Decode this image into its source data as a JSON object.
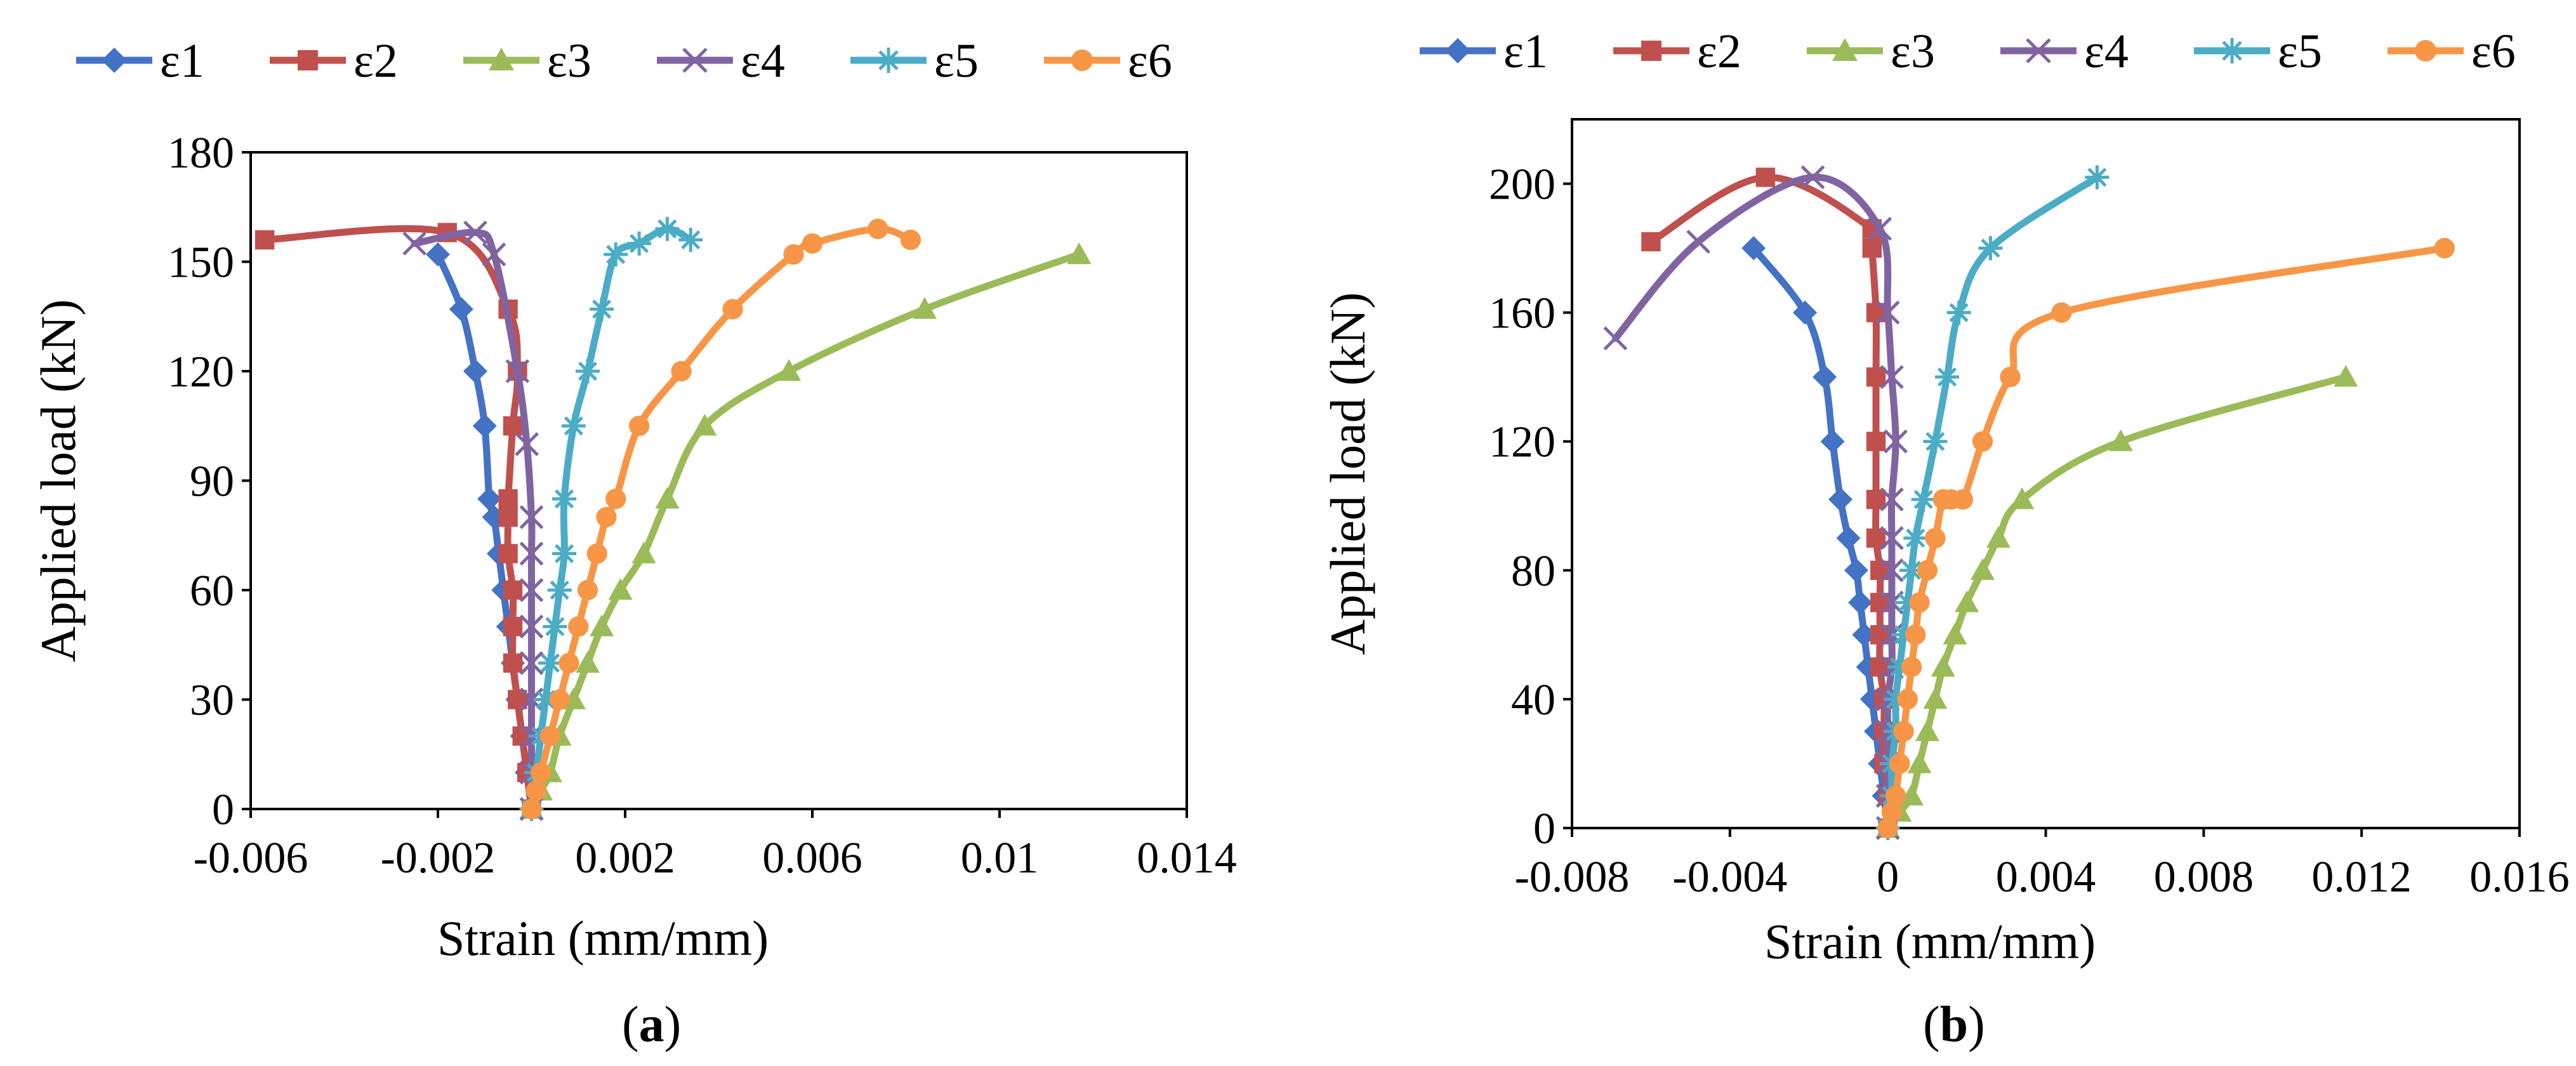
{
  "chart_data": [
    {
      "type": "line",
      "panel_label": "a",
      "xlabel": "Strain (mm/mm)",
      "ylabel": "Applied load (kN)",
      "xlim": [
        -0.006,
        0.014
      ],
      "ylim": [
        0,
        180
      ],
      "xticks": [
        -0.006,
        -0.002,
        0.002,
        0.006,
        0.01,
        0.014
      ],
      "xtick_labels": [
        "-0.006",
        "-0.002",
        "0.002",
        "0.006",
        "0.01",
        "0.014"
      ],
      "yticks": [
        0,
        30,
        60,
        90,
        120,
        150,
        180
      ],
      "ytick_labels": [
        "0",
        "30",
        "60",
        "90",
        "120",
        "150",
        "180"
      ],
      "legend_position": "top",
      "series": [
        {
          "name": "ε1",
          "color": "#4472C4",
          "marker": "diamond",
          "x": [
            0,
            -0.0001,
            -0.0002,
            -0.0003,
            -0.0004,
            -0.0005,
            -0.0006,
            -0.0007,
            -0.0008,
            -0.0009,
            -0.001,
            -0.0012,
            -0.0015,
            -0.002
          ],
          "y": [
            0,
            10,
            20,
            30,
            40,
            50,
            60,
            70,
            80,
            85,
            105,
            120,
            137,
            152
          ]
        },
        {
          "name": "ε2",
          "color": "#C0504D",
          "marker": "square",
          "x": [
            0,
            -0.0001,
            -0.0002,
            -0.0003,
            -0.0004,
            -0.0004,
            -0.0004,
            -0.0005,
            -0.0005,
            -0.0005,
            -0.0004,
            -0.0003,
            -0.0005,
            -0.0018,
            -0.0057
          ],
          "y": [
            0,
            10,
            20,
            30,
            40,
            50,
            60,
            70,
            80,
            85,
            105,
            120,
            137,
            158,
            156
          ]
        },
        {
          "name": "ε3",
          "color": "#9BBB59",
          "marker": "triangle",
          "x": [
            0,
            0.0002,
            0.0004,
            0.0006,
            0.0009,
            0.0012,
            0.0015,
            0.0019,
            0.0024,
            0.0029,
            0.0037,
            0.0055,
            0.0084,
            0.0117
          ],
          "y": [
            0,
            5,
            10,
            20,
            30,
            40,
            50,
            60,
            70,
            85,
            105,
            120,
            137,
            152
          ]
        },
        {
          "name": "ε4",
          "color": "#8064A2",
          "marker": "x",
          "x": [
            0,
            0,
            0,
            0,
            0,
            0,
            0,
            0,
            0,
            -0.0001,
            -0.0003,
            -0.0008,
            -0.0012,
            -0.0025
          ],
          "y": [
            0,
            10,
            20,
            30,
            40,
            50,
            60,
            70,
            80,
            100,
            120,
            152,
            158,
            155
          ]
        },
        {
          "name": "ε5",
          "color": "#4BACC6",
          "marker": "asterisk",
          "x": [
            0,
            0.0001,
            0.0002,
            0.0003,
            0.0004,
            0.0005,
            0.0006,
            0.0007,
            0.0007,
            0.0009,
            0.0012,
            0.0015,
            0.0018,
            0.0023,
            0.0029,
            0.0034
          ],
          "y": [
            0,
            10,
            20,
            30,
            40,
            50,
            60,
            70,
            85,
            105,
            120,
            137,
            152,
            155,
            159,
            156
          ]
        },
        {
          "name": "ε6",
          "color": "#F79646",
          "marker": "circle",
          "x": [
            0,
            0.0001,
            0.0002,
            0.0004,
            0.0006,
            0.0008,
            0.001,
            0.0012,
            0.0014,
            0.0016,
            0.0018,
            0.0023,
            0.0032,
            0.0043,
            0.0056,
            0.006,
            0.0074,
            0.0081
          ],
          "y": [
            0,
            5,
            10,
            20,
            30,
            40,
            50,
            60,
            70,
            80,
            85,
            105,
            120,
            137,
            152,
            155,
            159,
            156
          ]
        }
      ]
    },
    {
      "type": "line",
      "panel_label": "b",
      "xlabel": "Strain (mm/mm)",
      "ylabel": "Applied load (kN)",
      "xlim": [
        -0.008,
        0.016
      ],
      "ylim": [
        0,
        220
      ],
      "xticks": [
        -0.008,
        -0.004,
        0,
        0.004,
        0.008,
        0.012,
        0.016
      ],
      "xtick_labels": [
        "-0.008",
        "-0.004",
        "0",
        "0.004",
        "0.008",
        "0.012",
        "0.016"
      ],
      "yticks": [
        0,
        40,
        80,
        120,
        160,
        200
      ],
      "ytick_labels": [
        "0",
        "40",
        "80",
        "120",
        "160",
        "200"
      ],
      "legend_position": "top",
      "series": [
        {
          "name": "ε1",
          "color": "#4472C4",
          "marker": "diamond",
          "x": [
            0,
            -0.0001,
            -0.0002,
            -0.0003,
            -0.0004,
            -0.0005,
            -0.0006,
            -0.0007,
            -0.0008,
            -0.001,
            -0.0012,
            -0.0014,
            -0.0016,
            -0.0021,
            -0.0034
          ],
          "y": [
            0,
            10,
            20,
            30,
            40,
            50,
            60,
            70,
            80,
            90,
            102,
            120,
            140,
            160,
            180
          ]
        },
        {
          "name": "ε2",
          "color": "#C0504D",
          "marker": "square",
          "x": [
            0,
            0,
            -0.0001,
            -0.0001,
            -0.0001,
            -0.0002,
            -0.0002,
            -0.0002,
            -0.0002,
            -0.0003,
            -0.0003,
            -0.0003,
            -0.0003,
            -0.0003,
            -0.0004,
            -0.0004,
            -0.0031,
            -0.006
          ],
          "y": [
            0,
            10,
            20,
            30,
            40,
            50,
            60,
            70,
            80,
            90,
            102,
            120,
            140,
            160,
            180,
            186,
            202,
            182
          ]
        },
        {
          "name": "ε3",
          "color": "#9BBB59",
          "marker": "triangle",
          "x": [
            0,
            0.0003,
            0.0006,
            0.0008,
            0.001,
            0.0012,
            0.0014,
            0.0017,
            0.002,
            0.0024,
            0.0028,
            0.0034,
            0.0059,
            0.0116
          ],
          "y": [
            0,
            5,
            10,
            20,
            30,
            40,
            50,
            60,
            70,
            80,
            90,
            102,
            120,
            140
          ]
        },
        {
          "name": "ε4",
          "color": "#8064A2",
          "marker": "x",
          "x": [
            0,
            0,
            0,
            0,
            0,
            0.0001,
            0.0001,
            0.0001,
            0.0001,
            0.0001,
            0.0001,
            0.0002,
            0.0001,
            0,
            -0.0002,
            -0.0019,
            -0.0048,
            -0.0069
          ],
          "y": [
            0,
            10,
            20,
            30,
            40,
            50,
            60,
            70,
            80,
            90,
            102,
            120,
            140,
            160,
            186,
            202,
            182,
            152
          ]
        },
        {
          "name": "ε5",
          "color": "#4BACC6",
          "marker": "asterisk",
          "x": [
            0,
            0.0001,
            0.0001,
            0.0002,
            0.0002,
            0.0003,
            0.0004,
            0.0005,
            0.0006,
            0.0007,
            0.0009,
            0.0012,
            0.0015,
            0.0018,
            0.0026,
            0.0053
          ],
          "y": [
            0,
            10,
            20,
            30,
            40,
            50,
            60,
            70,
            80,
            90,
            102,
            120,
            140,
            160,
            180,
            202
          ]
        },
        {
          "name": "ε6",
          "color": "#F79646",
          "marker": "circle",
          "x": [
            0,
            0.0001,
            0.0002,
            0.0003,
            0.0004,
            0.0005,
            0.0006,
            0.0007,
            0.0008,
            0.001,
            0.0012,
            0.0014,
            0.0016,
            0.0019,
            0.0024,
            0.0031,
            0.0044,
            0.0141
          ],
          "y": [
            0,
            5,
            10,
            20,
            30,
            40,
            50,
            60,
            70,
            80,
            90,
            102,
            102,
            102,
            120,
            140,
            160,
            180
          ]
        }
      ]
    }
  ]
}
